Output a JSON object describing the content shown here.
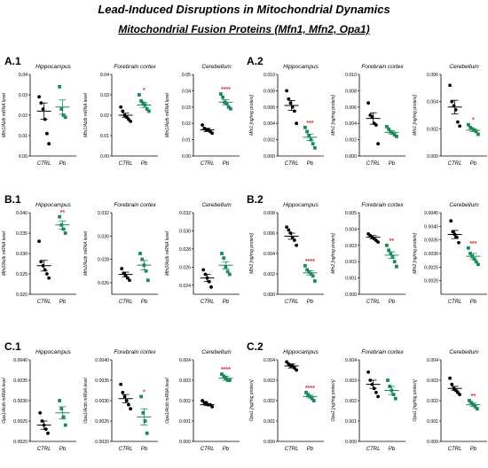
{
  "title": "Lead-Induced Disruptions in Mitochondrial Dynamics",
  "subtitle": "Mitochondrial Fusion Proteins (Mfn1, Mfn2, Opa1)",
  "colors": {
    "ctrl": "#000000",
    "pb": "#1a8a5a",
    "sig": "#d62728"
  },
  "panel_labels": [
    {
      "id": "A.1",
      "x": 5,
      "y": 62
    },
    {
      "id": "A.2",
      "x": 278,
      "y": 62
    },
    {
      "id": "B.1",
      "x": 5,
      "y": 218
    },
    {
      "id": "B.2",
      "x": 278,
      "y": 218
    },
    {
      "id": "C.1",
      "x": 5,
      "y": 384
    },
    {
      "id": "C.2",
      "x": 278,
      "y": 384
    }
  ],
  "chart_data": [
    {
      "id": "a1-hippocampus",
      "type": "scatter",
      "title": "Hippocampus",
      "ylabel": "Mfn1/Actb mRNA level",
      "categories": [
        "CTRL",
        "Pb"
      ],
      "ylim": [
        0,
        0.04
      ],
      "yticks": [
        "0.00",
        "0.01",
        "0.02",
        "0.03",
        "0.04"
      ],
      "significance": "",
      "series": [
        {
          "name": "CTRL",
          "values": [
            0.029,
            0.026,
            0.023,
            0.018,
            0.011,
            0.006
          ],
          "mean": 0.022,
          "sem": 0.004
        },
        {
          "name": "Pb",
          "values": [
            0.034,
            0.023,
            0.02,
            0.019
          ],
          "mean": 0.024,
          "sem": 0.0035
        }
      ]
    },
    {
      "id": "a1-forebrain",
      "type": "scatter",
      "title": "Forebrain cortex",
      "ylabel": "Mfn1/Actb mRNA level",
      "categories": [
        "CTRL",
        "Pb"
      ],
      "ylim": [
        0,
        0.04
      ],
      "yticks": [
        "0.00",
        "0.01",
        "0.02",
        "0.03",
        "0.04"
      ],
      "significance": "*",
      "series": [
        {
          "name": "CTRL",
          "values": [
            0.024,
            0.022,
            0.02,
            0.019,
            0.018,
            0.017
          ],
          "mean": 0.02,
          "sem": 0.001
        },
        {
          "name": "Pb",
          "values": [
            0.03,
            0.027,
            0.026,
            0.025,
            0.023,
            0.022
          ],
          "mean": 0.025,
          "sem": 0.0012
        }
      ]
    },
    {
      "id": "a1-cerebellum",
      "type": "scatter",
      "title": "Cerebellum",
      "ylabel": "Mfn1/Actb mRNA level",
      "categories": [
        "CTRL",
        "Pb"
      ],
      "ylim": [
        0,
        0.05
      ],
      "yticks": [
        "0.00",
        "0.01",
        "0.02",
        "0.03",
        "0.04",
        "0.05"
      ],
      "significance": "****",
      "series": [
        {
          "name": "CTRL",
          "values": [
            0.019,
            0.017,
            0.016,
            0.016,
            0.015,
            0.014
          ],
          "mean": 0.016,
          "sem": 0.001
        },
        {
          "name": "Pb",
          "values": [
            0.038,
            0.036,
            0.033,
            0.032,
            0.03,
            0.029
          ],
          "mean": 0.033,
          "sem": 0.0015
        }
      ]
    },
    {
      "id": "a2-hippocampus",
      "type": "scatter",
      "title": "Hippocampus",
      "ylabel": "Mfn1 [ng/mg protein]",
      "categories": [
        "CTRL",
        "Pb"
      ],
      "ylim": [
        0,
        0.01
      ],
      "yticks": [
        "0.000",
        "0.002",
        "0.004",
        "0.006",
        "0.008",
        "0.010"
      ],
      "significance": "***",
      "series": [
        {
          "name": "CTRL",
          "values": [
            0.008,
            0.007,
            0.0065,
            0.006,
            0.0055,
            0.004
          ],
          "mean": 0.0062,
          "sem": 0.0006
        },
        {
          "name": "Pb",
          "values": [
            0.0035,
            0.003,
            0.0025,
            0.002,
            0.0015,
            0.001
          ],
          "mean": 0.0023,
          "sem": 0.0004
        }
      ]
    },
    {
      "id": "a2-forebrain",
      "type": "scatter",
      "title": "Forebrain cortex",
      "ylabel": "Mfn1 [ng/mg protein]",
      "categories": [
        "CTRL",
        "Pb"
      ],
      "ylim": [
        0,
        0.01
      ],
      "yticks": [
        "0.000",
        "0.002",
        "0.004",
        "0.006",
        "0.008",
        "0.010"
      ],
      "significance": "",
      "series": [
        {
          "name": "CTRL",
          "values": [
            0.0065,
            0.005,
            0.0048,
            0.004,
            0.0038,
            0.0015
          ],
          "mean": 0.0046,
          "sem": 0.0007
        },
        {
          "name": "Pb",
          "values": [
            0.0036,
            0.0033,
            0.003,
            0.0028,
            0.0026,
            0.0024
          ],
          "mean": 0.0029,
          "sem": 0.0002
        }
      ]
    },
    {
      "id": "a2-cerebellum",
      "type": "scatter",
      "title": "Cerebellum",
      "ylabel": "Mfn1 [ng/mg protein]",
      "categories": [
        "CTRL",
        "Pb"
      ],
      "ylim": [
        0,
        0.006
      ],
      "yticks": [
        "0.000",
        "0.002",
        "0.004",
        "0.006"
      ],
      "significance": "*",
      "series": [
        {
          "name": "CTRL",
          "values": [
            0.0052,
            0.004,
            0.0037,
            0.0034,
            0.0025,
            0.0022
          ],
          "mean": 0.0036,
          "sem": 0.0005
        },
        {
          "name": "Pb",
          "values": [
            0.0023,
            0.0021,
            0.002,
            0.0019,
            0.0018,
            0.0016
          ],
          "mean": 0.0019,
          "sem": 0.0001
        }
      ]
    },
    {
      "id": "b1-hippocampus",
      "type": "scatter",
      "title": "Hippocampus",
      "ylabel": "Mfn2/Actb mRNA level",
      "categories": [
        "CTRL",
        "Pb"
      ],
      "ylim": [
        0.02,
        0.04
      ],
      "yticks": [
        "0.020",
        "0.025",
        "0.030",
        "0.035",
        "0.040"
      ],
      "significance": "**",
      "series": [
        {
          "name": "CTRL",
          "values": [
            0.033,
            0.028,
            0.027,
            0.026,
            0.025,
            0.024
          ],
          "mean": 0.027,
          "sem": 0.0013
        },
        {
          "name": "Pb",
          "values": [
            0.039,
            0.037,
            0.036,
            0.035
          ],
          "mean": 0.037,
          "sem": 0.001
        }
      ]
    },
    {
      "id": "b1-forebrain",
      "type": "scatter",
      "title": "Forebrain cortex",
      "ylabel": "Mfn2/Actb mRNA level",
      "categories": [
        "CTRL",
        "Pb"
      ],
      "ylim": [
        0.025,
        0.032
      ],
      "yticks": [
        "0.026",
        "0.028",
        "0.030",
        "0.032"
      ],
      "significance": "",
      "series": [
        {
          "name": "CTRL",
          "values": [
            0.0272,
            0.0268,
            0.0266,
            0.0264,
            0.0262
          ],
          "mean": 0.0267,
          "sem": 0.0002
        },
        {
          "name": "Pb",
          "values": [
            0.0285,
            0.028,
            0.0275,
            0.027,
            0.0262
          ],
          "mean": 0.0275,
          "sem": 0.0004
        }
      ]
    },
    {
      "id": "b1-cerebellum",
      "type": "scatter",
      "title": "Cerebellum",
      "ylabel": "Mfn2/Actb mRNA level",
      "categories": [
        "CTRL",
        "Pb"
      ],
      "ylim": [
        0.023,
        0.032
      ],
      "yticks": [
        "0.024",
        "0.026",
        "0.028",
        "0.030",
        "0.032"
      ],
      "significance": "",
      "series": [
        {
          "name": "CTRL",
          "values": [
            0.0257,
            0.0252,
            0.0248,
            0.0244,
            0.0238
          ],
          "mean": 0.0248,
          "sem": 0.0004
        },
        {
          "name": "Pb",
          "values": [
            0.0275,
            0.027,
            0.026,
            0.0255,
            0.0252
          ],
          "mean": 0.0262,
          "sem": 0.0004
        }
      ]
    },
    {
      "id": "b2-hippocampus",
      "type": "scatter",
      "title": "Hippocampus",
      "ylabel": "Mfn2 [ng/mg protein]",
      "categories": [
        "CTRL",
        "Pb"
      ],
      "ylim": [
        0,
        0.008
      ],
      "yticks": [
        "0.000",
        "0.002",
        "0.004",
        "0.006",
        "0.008"
      ],
      "significance": "****",
      "series": [
        {
          "name": "CTRL",
          "values": [
            0.0066,
            0.0063,
            0.006,
            0.0056,
            0.0053,
            0.0048
          ],
          "mean": 0.0057,
          "sem": 0.0003
        },
        {
          "name": "Pb",
          "values": [
            0.0028,
            0.0024,
            0.0022,
            0.002,
            0.0018,
            0.0013
          ],
          "mean": 0.0021,
          "sem": 0.0002
        }
      ]
    },
    {
      "id": "b2-forebrain",
      "type": "scatter",
      "title": "Forebrain cortex",
      "ylabel": "Mfn2 [ng/mg protein]",
      "categories": [
        "CTRL",
        "Pb"
      ],
      "ylim": [
        0,
        0.005
      ],
      "yticks": [
        "0.000",
        "0.001",
        "0.002",
        "0.003",
        "0.004",
        "0.005"
      ],
      "significance": "**",
      "series": [
        {
          "name": "CTRL",
          "values": [
            0.0037,
            0.0036,
            0.0035,
            0.0034,
            0.0033,
            0.0032
          ],
          "mean": 0.0035,
          "sem": 0.0001
        },
        {
          "name": "Pb",
          "values": [
            0.003,
            0.0027,
            0.0025,
            0.0023,
            0.002,
            0.0017
          ],
          "mean": 0.0024,
          "sem": 0.0002
        }
      ]
    },
    {
      "id": "b2-cerebellum",
      "type": "scatter",
      "title": "Cerebellum",
      "ylabel": "Mfn2 [ng/mg protein]",
      "categories": [
        "CTRL",
        "Pb"
      ],
      "ylim": [
        0.0015,
        0.0045
      ],
      "yticks": [
        "0.0020",
        "0.0025",
        "0.0030",
        "0.0035",
        "0.0040",
        "0.0045"
      ],
      "significance": "***",
      "series": [
        {
          "name": "CTRL",
          "values": [
            0.0042,
            0.0038,
            0.0037,
            0.0036,
            0.0034
          ],
          "mean": 0.0037,
          "sem": 0.00015
        },
        {
          "name": "Pb",
          "values": [
            0.0032,
            0.003,
            0.0029,
            0.0028,
            0.0027,
            0.0026
          ],
          "mean": 0.0029,
          "sem": 0.0001
        }
      ]
    },
    {
      "id": "c1-hippocampus",
      "type": "scatter",
      "title": "Hippocampus",
      "ylabel": "Opa1/Actb mRNA level",
      "categories": [
        "CTRL",
        "Pb"
      ],
      "ylim": [
        0.002,
        0.004
      ],
      "yticks": [
        "0.0020",
        "0.0025",
        "0.0030",
        "0.0035",
        "0.0040"
      ],
      "significance": "",
      "series": [
        {
          "name": "CTRL",
          "values": [
            0.0027,
            0.0025,
            0.0024,
            0.0023,
            0.0022
          ],
          "mean": 0.0024,
          "sem": 0.0001
        },
        {
          "name": "Pb",
          "values": [
            0.003,
            0.0028,
            0.0026,
            0.0024
          ],
          "mean": 0.0027,
          "sem": 0.00015
        }
      ]
    },
    {
      "id": "c1-forebrain",
      "type": "scatter",
      "title": "Forebrain cortex",
      "ylabel": "Opa1/Actb mRNA level",
      "categories": [
        "CTRL",
        "Pb"
      ],
      "ylim": [
        0.002,
        0.004
      ],
      "yticks": [
        "0.0020",
        "0.0025",
        "0.0030",
        "0.0035",
        "0.0040"
      ],
      "significance": "*",
      "series": [
        {
          "name": "CTRL",
          "values": [
            0.0034,
            0.0032,
            0.0031,
            0.003,
            0.0029,
            0.0028
          ],
          "mean": 0.00305,
          "sem": 0.0001
        },
        {
          "name": "Pb",
          "values": [
            0.0031,
            0.0027,
            0.0025,
            0.0022
          ],
          "mean": 0.0026,
          "sem": 0.0002
        }
      ]
    },
    {
      "id": "c1-cerebellum",
      "type": "scatter",
      "title": "Cerebellum",
      "ylabel": "Opa1/Actb mRNA level",
      "categories": [
        "CTRL",
        "Pb"
      ],
      "ylim": [
        0,
        0.004
      ],
      "yticks": [
        "0.000",
        "0.001",
        "0.002",
        "0.003",
        "0.004"
      ],
      "significance": "****",
      "series": [
        {
          "name": "CTRL",
          "values": [
            0.002,
            0.0019,
            0.0019,
            0.0018,
            0.0018,
            0.0017
          ],
          "mean": 0.0018,
          "sem": 5e-05
        },
        {
          "name": "Pb",
          "values": [
            0.0033,
            0.0032,
            0.0031,
            0.003,
            0.003
          ],
          "mean": 0.0031,
          "sem": 0.0001
        }
      ]
    },
    {
      "id": "c2-hippocampus",
      "type": "scatter",
      "title": "Hippocampus",
      "ylabel": "Opa1 [ng/mg protein]",
      "categories": [
        "CTRL",
        "Pb"
      ],
      "ylim": [
        0,
        0.004
      ],
      "yticks": [
        "0.000",
        "0.001",
        "0.002",
        "0.003",
        "0.004"
      ],
      "significance": "****",
      "series": [
        {
          "name": "CTRL",
          "values": [
            0.0039,
            0.0038,
            0.0037,
            0.0037,
            0.0036,
            0.0035
          ],
          "mean": 0.0037,
          "sem": 0.0001
        },
        {
          "name": "Pb",
          "values": [
            0.0024,
            0.0023,
            0.0022,
            0.0021,
            0.002
          ],
          "mean": 0.0022,
          "sem": 7e-05
        }
      ]
    },
    {
      "id": "c2-forebrain",
      "type": "scatter",
      "title": "Forebrain cortex",
      "ylabel": "Opa1 [ng/mg protein]",
      "categories": [
        "CTRL",
        "Pb"
      ],
      "ylim": [
        0,
        0.004
      ],
      "yticks": [
        "0.000",
        "0.001",
        "0.002",
        "0.003",
        "0.004"
      ],
      "significance": "",
      "series": [
        {
          "name": "CTRL",
          "values": [
            0.0034,
            0.003,
            0.0028,
            0.0026,
            0.0024,
            0.0022
          ],
          "mean": 0.0028,
          "sem": 0.0002
        },
        {
          "name": "Pb",
          "values": [
            0.003,
            0.0027,
            0.0025,
            0.0023,
            0.0021
          ],
          "mean": 0.0025,
          "sem": 0.0002
        }
      ]
    },
    {
      "id": "c2-cerebellum",
      "type": "scatter",
      "title": "Cerebellum",
      "ylabel": "Opa1 [ng/mg protein]",
      "categories": [
        "CTRL",
        "Pb"
      ],
      "ylim": [
        0,
        0.004
      ],
      "yticks": [
        "0.000",
        "0.001",
        "0.002",
        "0.003",
        "0.004"
      ],
      "significance": "**",
      "series": [
        {
          "name": "CTRL",
          "values": [
            0.0031,
            0.0028,
            0.0026,
            0.0025,
            0.0024,
            0.0023
          ],
          "mean": 0.0026,
          "sem": 0.0001
        },
        {
          "name": "Pb",
          "values": [
            0.002,
            0.0019,
            0.0018,
            0.0017,
            0.0016
          ],
          "mean": 0.0018,
          "sem": 8e-05
        }
      ]
    }
  ]
}
